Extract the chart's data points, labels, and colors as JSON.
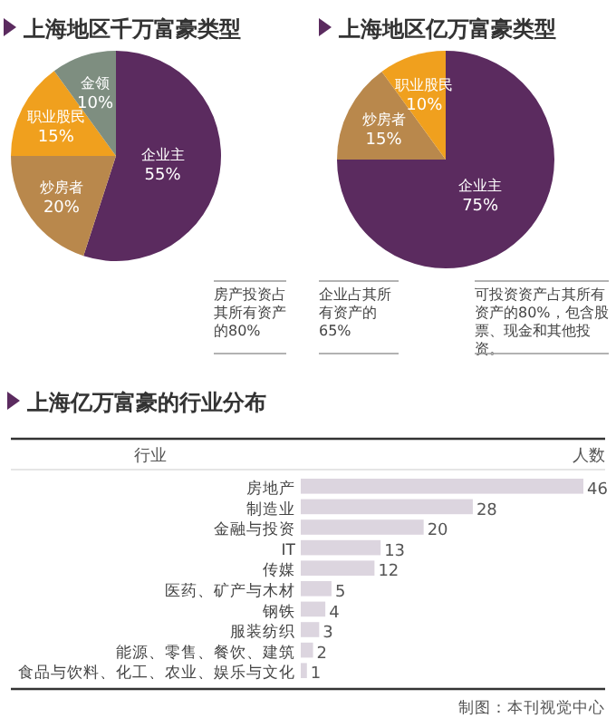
{
  "chart_data": [
    {
      "type": "pie",
      "title": "上海地区千万富豪类型",
      "categories": [
        "企业主",
        "炒房者",
        "职业股民",
        "金领"
      ],
      "values": [
        55,
        20,
        15,
        10
      ],
      "colors": [
        "#5b2b5f",
        "#b9884c",
        "#f0a01e",
        "#7e8e80"
      ],
      "value_labels": [
        "55%",
        "20%",
        "15%",
        "10%"
      ]
    },
    {
      "type": "pie",
      "title": "上海地区亿万富豪类型",
      "categories": [
        "企业主",
        "炒房者",
        "职业股民"
      ],
      "values": [
        75,
        15,
        10
      ],
      "colors": [
        "#5b2b5f",
        "#b9884c",
        "#f0a01e"
      ],
      "value_labels": [
        "75%",
        "15%",
        "10%"
      ],
      "annotations": [
        "房产投资占其所有资产的80%",
        "企业占其所有资产的65%",
        "可投资资产占其所有资产的80%，包含股票、现金和其他投资。"
      ]
    },
    {
      "type": "bar",
      "orientation": "horizontal",
      "title": "上海亿万富豪的行业分布",
      "ylabel": "行业",
      "xlabel": "人数",
      "categories": [
        "房地产",
        "制造业",
        "金融与投资",
        "IT",
        "传媒",
        "医药、矿产与木材",
        "钢铁",
        "服装纺织",
        "能源、零售、餐饮、建筑",
        "食品与饮料、化工、农业、娱乐与文化"
      ],
      "values": [
        46,
        28,
        20,
        13,
        12,
        5,
        4,
        3,
        2,
        1
      ],
      "color": "#dcd5df",
      "data_labels": true,
      "annotations": [
        "制图：本刊视觉中心"
      ]
    }
  ]
}
